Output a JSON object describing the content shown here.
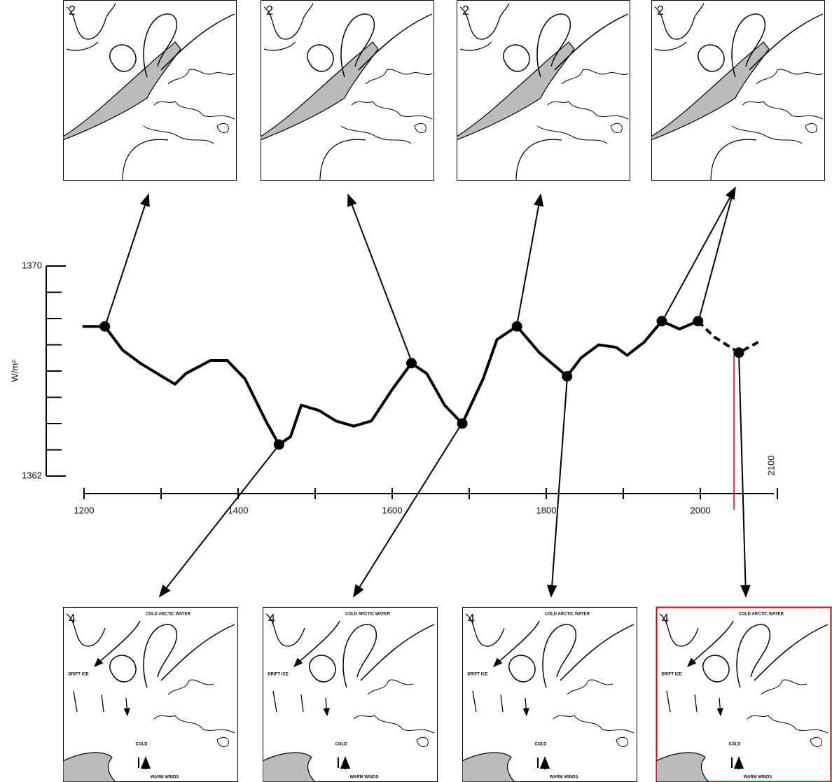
{
  "chart_data": {
    "type": "line",
    "ylabel": "W/m²",
    "xlim": [
      1200,
      2100
    ],
    "ylim": [
      1362,
      1370
    ],
    "xticks": [
      1200,
      1400,
      1600,
      1800,
      2000,
      2100
    ],
    "xminorticks": [
      1300,
      1500,
      1700,
      1900
    ],
    "yticks": [
      1362,
      1370
    ],
    "yminorticks": [
      1363,
      1364,
      1365,
      1366,
      1367,
      1368,
      1369
    ],
    "series": [
      {
        "color": "#000000",
        "style": "solid",
        "x": [
          1198,
          1227,
          1250,
          1273,
          1318,
          1332,
          1364,
          1386,
          1409,
          1436,
          1453,
          1468,
          1482,
          1505,
          1527,
          1550,
          1573,
          1600,
          1625,
          1645,
          1668,
          1691,
          1718,
          1736,
          1762,
          1791,
          1827,
          1845,
          1868,
          1891,
          1905,
          1927,
          1950,
          1973,
          1997
        ],
        "values": [
          1367.7,
          1367.7,
          1366.8,
          1366.3,
          1365.5,
          1365.9,
          1366.4,
          1366.4,
          1365.7,
          1364.1,
          1363.2,
          1363.5,
          1364.7,
          1364.5,
          1364.1,
          1363.9,
          1364.1,
          1365.3,
          1366.3,
          1365.9,
          1364.7,
          1364.0,
          1365.7,
          1367.2,
          1367.7,
          1366.7,
          1365.8,
          1366.5,
          1367.0,
          1366.9,
          1366.6,
          1367.1,
          1367.9,
          1367.6,
          1367.9
        ]
      },
      {
        "color": "#000000",
        "style": "dashed",
        "x": [
          1997,
          2018,
          2050,
          2075
        ],
        "values": [
          1367.9,
          1367.3,
          1366.7,
          1367.1
        ]
      },
      {
        "color": "#000000",
        "style": "dots",
        "x": [
          1227,
          1453,
          1625,
          1691,
          1762,
          1827,
          1950,
          1997,
          2050
        ],
        "values": [
          1367.7,
          1363.2,
          1366.3,
          1364.0,
          1367.7,
          1365.8,
          1367.9,
          1367.9,
          1366.7
        ]
      }
    ]
  },
  "maps": {
    "top": {
      "label": "2"
    },
    "bottom": {
      "label": "4",
      "notes": [
        "COLD ARCTIC WATER",
        "DRIFT ICE",
        "COLD",
        "WARM WINDS"
      ]
    }
  }
}
